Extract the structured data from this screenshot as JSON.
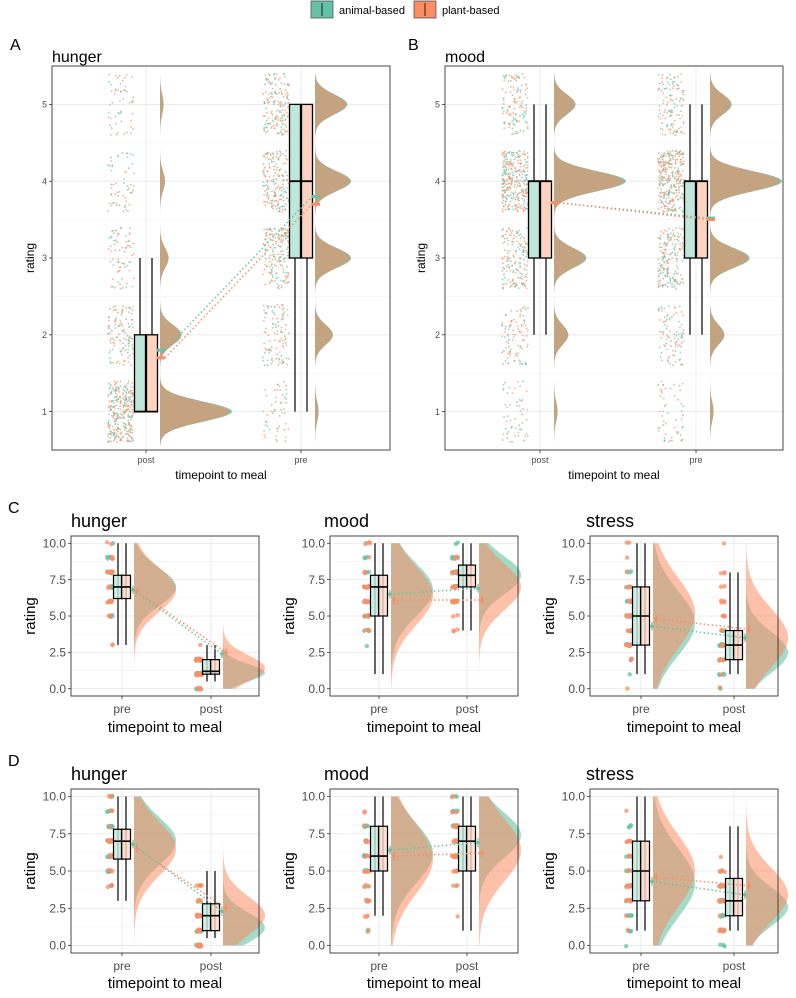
{
  "legend": {
    "items": [
      {
        "label": "animal-based",
        "color": "#66c2a5"
      },
      {
        "label": "plant-based",
        "color": "#fc8d62"
      }
    ]
  },
  "colors": {
    "animal": "#66c2a5",
    "plant": "#fc8d62",
    "overlap": "#c8a07e"
  },
  "rows": [
    {
      "tag": "A"
    },
    {
      "tag": "B"
    },
    {
      "tag": "C"
    },
    {
      "tag": "D"
    }
  ],
  "chart_data": [
    {
      "id": "A",
      "type": "raincloud",
      "title": "hunger",
      "xlabel": "timepoint to meal",
      "ylabel": "rating",
      "categories": [
        "post",
        "pre"
      ],
      "ylim": [
        0.5,
        5.5
      ],
      "yticks": [
        1,
        2,
        3,
        4,
        5
      ],
      "rating_levels": [
        1,
        2,
        3,
        4,
        5
      ],
      "box": [
        {
          "category": "post",
          "q1": 1,
          "median": 1,
          "q3": 2,
          "min": 1,
          "max": 3
        },
        {
          "category": "pre",
          "q1": 3,
          "median": 4,
          "q3": 5,
          "min": 1,
          "max": 5
        }
      ],
      "means": [
        {
          "category": "post",
          "animal": 1.8,
          "plant": 1.7
        },
        {
          "category": "pre",
          "animal": 3.8,
          "plant": 3.7
        }
      ],
      "density_levels": [
        {
          "category": "post",
          "weights": [
            1.0,
            0.3,
            0.12,
            0.07,
            0.05
          ]
        },
        {
          "category": "pre",
          "weights": [
            0.05,
            0.25,
            0.5,
            0.5,
            0.45
          ]
        }
      ]
    },
    {
      "id": "B",
      "type": "raincloud",
      "title": "mood",
      "xlabel": "timepoint to meal",
      "ylabel": "rating",
      "categories": [
        "post",
        "pre"
      ],
      "ylim": [
        0.5,
        5.5
      ],
      "yticks": [
        1,
        2,
        3,
        4,
        5
      ],
      "rating_levels": [
        1,
        2,
        3,
        4,
        5
      ],
      "box": [
        {
          "category": "post",
          "q1": 3,
          "median": 4,
          "q3": 4,
          "min": 2,
          "max": 5
        },
        {
          "category": "pre",
          "q1": 3,
          "median": 4,
          "q3": 4,
          "min": 2,
          "max": 5
        }
      ],
      "means": [
        {
          "category": "post",
          "animal": 3.72,
          "plant": 3.72
        },
        {
          "category": "pre",
          "animal": 3.52,
          "plant": 3.5
        }
      ],
      "density_levels": [
        {
          "category": "post",
          "weights": [
            0.05,
            0.2,
            0.45,
            1.0,
            0.3
          ]
        },
        {
          "category": "pre",
          "weights": [
            0.05,
            0.2,
            0.55,
            1.0,
            0.3
          ]
        }
      ]
    },
    {
      "id": "C1",
      "type": "raincloud",
      "title": "hunger",
      "xlabel": "timepoint to meal",
      "ylabel": "rating",
      "categories": [
        "pre",
        "post"
      ],
      "ylim": [
        -0.5,
        10.5
      ],
      "yticks": [
        0.0,
        2.5,
        5.0,
        7.5,
        10.0
      ],
      "ytick_labels": [
        "0.0",
        "2.5",
        "5.0",
        "7.5",
        "10.0"
      ],
      "box": [
        {
          "category": "pre",
          "q1": 6.2,
          "median": 7.0,
          "q3": 7.8,
          "min": 3.0,
          "max": 10.0
        },
        {
          "category": "post",
          "q1": 1.0,
          "median": 1.2,
          "q3": 2.0,
          "min": 0.5,
          "max": 3.0
        }
      ],
      "means": [
        {
          "category": "pre",
          "animal": 6.8,
          "plant": 6.7
        },
        {
          "category": "post",
          "animal": 2.4,
          "plant": 2.5
        }
      ],
      "density": [
        {
          "category": "pre",
          "animal": {
            "mean": 7.0,
            "sd": 1.3
          },
          "plant": {
            "mean": 6.8,
            "sd": 1.5
          }
        },
        {
          "category": "post",
          "animal": {
            "mean": 1.1,
            "sd": 0.6
          },
          "plant": {
            "mean": 1.4,
            "sd": 0.9
          }
        }
      ]
    },
    {
      "id": "C2",
      "type": "raincloud",
      "title": "mood",
      "xlabel": "timepoint to meal",
      "ylabel": "rating",
      "categories": [
        "pre",
        "post"
      ],
      "ylim": [
        -0.5,
        10.5
      ],
      "yticks": [
        0.0,
        2.5,
        5.0,
        7.5,
        10.0
      ],
      "ytick_labels": [
        "0.0",
        "2.5",
        "5.0",
        "7.5",
        "10.0"
      ],
      "box": [
        {
          "category": "pre",
          "q1": 5.0,
          "median": 7.0,
          "q3": 7.8,
          "min": 1.0,
          "max": 10.0
        },
        {
          "category": "post",
          "q1": 7.0,
          "median": 7.8,
          "q3": 8.5,
          "min": 4.0,
          "max": 10.0
        }
      ],
      "means": [
        {
          "category": "pre",
          "animal": 6.5,
          "plant": 6.1
        },
        {
          "category": "post",
          "animal": 6.9,
          "plant": 6.1
        }
      ],
      "density": [
        {
          "category": "pre",
          "animal": {
            "mean": 6.8,
            "sd": 1.8
          },
          "plant": {
            "mean": 6.4,
            "sd": 2.0
          }
        },
        {
          "category": "post",
          "animal": {
            "mean": 7.8,
            "sd": 1.3
          },
          "plant": {
            "mean": 7.0,
            "sd": 1.6
          }
        }
      ]
    },
    {
      "id": "C3",
      "type": "raincloud",
      "title": "stress",
      "xlabel": "timepoint to meal",
      "ylabel": "rating",
      "categories": [
        "pre",
        "post"
      ],
      "ylim": [
        -0.5,
        10.5
      ],
      "yticks": [
        0.0,
        2.5,
        5.0,
        7.5,
        10.0
      ],
      "ytick_labels": [
        "0.0",
        "2.5",
        "5.0",
        "7.5",
        "10.0"
      ],
      "box": [
        {
          "category": "pre",
          "q1": 3.0,
          "median": 5.0,
          "q3": 7.0,
          "min": 1.0,
          "max": 10.0
        },
        {
          "category": "post",
          "q1": 2.0,
          "median": 3.0,
          "q3": 4.0,
          "min": 1.0,
          "max": 8.0
        }
      ],
      "means": [
        {
          "category": "pre",
          "animal": 4.3,
          "plant": 4.8
        },
        {
          "category": "post",
          "animal": 3.5,
          "plant": 4.1
        }
      ],
      "density": [
        {
          "category": "pre",
          "animal": {
            "mean": 4.5,
            "sd": 2.2
          },
          "plant": {
            "mean": 5.2,
            "sd": 2.4
          }
        },
        {
          "category": "post",
          "animal": {
            "mean": 2.5,
            "sd": 1.4
          },
          "plant": {
            "mean": 3.5,
            "sd": 2.0
          }
        }
      ]
    },
    {
      "id": "D1",
      "type": "raincloud",
      "title": "hunger",
      "xlabel": "timepoint to meal",
      "ylabel": "rating",
      "categories": [
        "pre",
        "post"
      ],
      "ylim": [
        -0.5,
        10.5
      ],
      "yticks": [
        0.0,
        2.5,
        5.0,
        7.5,
        10.0
      ],
      "ytick_labels": [
        "0.0",
        "2.5",
        "5.0",
        "7.5",
        "10.0"
      ],
      "box": [
        {
          "category": "pre",
          "q1": 5.8,
          "median": 7.0,
          "q3": 7.8,
          "min": 3.0,
          "max": 10.0
        },
        {
          "category": "post",
          "q1": 1.0,
          "median": 2.0,
          "q3": 2.8,
          "min": 0.5,
          "max": 5.0
        }
      ],
      "means": [
        {
          "category": "pre",
          "animal": 6.8,
          "plant": 6.5
        },
        {
          "category": "post",
          "animal": 2.3,
          "plant": 2.5
        }
      ],
      "density": [
        {
          "category": "pre",
          "animal": {
            "mean": 7.0,
            "sd": 1.6
          },
          "plant": {
            "mean": 6.5,
            "sd": 1.8
          }
        },
        {
          "category": "post",
          "animal": {
            "mean": 1.2,
            "sd": 1.0
          },
          "plant": {
            "mean": 2.0,
            "sd": 1.3
          }
        }
      ]
    },
    {
      "id": "D2",
      "type": "raincloud",
      "title": "mood",
      "xlabel": "timepoint to meal",
      "ylabel": "rating",
      "categories": [
        "pre",
        "post"
      ],
      "ylim": [
        -0.5,
        10.5
      ],
      "yticks": [
        0.0,
        2.5,
        5.0,
        7.5,
        10.0
      ],
      "ytick_labels": [
        "0.0",
        "2.5",
        "5.0",
        "7.5",
        "10.0"
      ],
      "box": [
        {
          "category": "pre",
          "q1": 5.0,
          "median": 6.0,
          "q3": 8.0,
          "min": 2.0,
          "max": 10.0
        },
        {
          "category": "post",
          "q1": 5.0,
          "median": 7.0,
          "q3": 8.0,
          "min": 1.0,
          "max": 10.0
        }
      ],
      "means": [
        {
          "category": "pre",
          "animal": 6.4,
          "plant": 6.0
        },
        {
          "category": "post",
          "animal": 6.9,
          "plant": 6.2
        }
      ],
      "density": [
        {
          "category": "pre",
          "animal": {
            "mean": 6.2,
            "sd": 2.0
          },
          "plant": {
            "mean": 5.8,
            "sd": 2.3
          }
        },
        {
          "category": "post",
          "animal": {
            "mean": 7.4,
            "sd": 1.5
          },
          "plant": {
            "mean": 6.4,
            "sd": 2.1
          }
        }
      ]
    },
    {
      "id": "D3",
      "type": "raincloud",
      "title": "stress",
      "xlabel": "timepoint to meal",
      "ylabel": "rating",
      "categories": [
        "pre",
        "post"
      ],
      "ylim": [
        -0.5,
        10.5
      ],
      "yticks": [
        0.0,
        2.5,
        5.0,
        7.5,
        10.0
      ],
      "ytick_labels": [
        "0.0",
        "2.5",
        "5.0",
        "7.5",
        "10.0"
      ],
      "box": [
        {
          "category": "pre",
          "q1": 3.0,
          "median": 5.0,
          "q3": 7.0,
          "min": 1.0,
          "max": 10.0
        },
        {
          "category": "post",
          "q1": 2.0,
          "median": 3.0,
          "q3": 4.5,
          "min": 1.0,
          "max": 8.0
        }
      ],
      "means": [
        {
          "category": "pre",
          "animal": 4.3,
          "plant": 4.6
        },
        {
          "category": "post",
          "animal": 3.4,
          "plant": 4.0
        }
      ],
      "density": [
        {
          "category": "pre",
          "animal": {
            "mean": 4.2,
            "sd": 2.3
          },
          "plant": {
            "mean": 5.0,
            "sd": 2.4
          }
        },
        {
          "category": "post",
          "animal": {
            "mean": 2.6,
            "sd": 1.3
          },
          "plant": {
            "mean": 3.4,
            "sd": 1.8
          }
        }
      ]
    }
  ]
}
